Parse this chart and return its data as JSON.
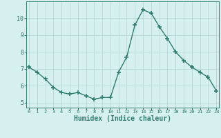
{
  "x": [
    0,
    1,
    2,
    3,
    4,
    5,
    6,
    7,
    8,
    9,
    10,
    11,
    12,
    13,
    14,
    15,
    16,
    17,
    18,
    19,
    20,
    21,
    22,
    23
  ],
  "y": [
    7.1,
    6.8,
    6.4,
    5.9,
    5.6,
    5.5,
    5.6,
    5.4,
    5.2,
    5.3,
    5.3,
    6.8,
    7.7,
    9.6,
    10.5,
    10.3,
    9.5,
    8.8,
    8.0,
    7.5,
    7.1,
    6.8,
    6.5,
    5.7
  ],
  "line_color": "#2e7d6e",
  "marker": "+",
  "markersize": 4,
  "markeredgewidth": 1.2,
  "linewidth": 1.0,
  "bg_color": "#d6efef",
  "grid_color": "#b8d8d8",
  "xlabel": "Humidex (Indice chaleur)",
  "xlabel_fontsize": 7,
  "xtick_fontsize": 5,
  "ytick_fontsize": 6,
  "ytick_labels": [
    "5",
    "6",
    "7",
    "8",
    "9",
    "10"
  ],
  "yticks": [
    5,
    6,
    7,
    8,
    9,
    10
  ],
  "ylim": [
    4.7,
    11.0
  ],
  "xlim": [
    -0.3,
    23.3
  ]
}
